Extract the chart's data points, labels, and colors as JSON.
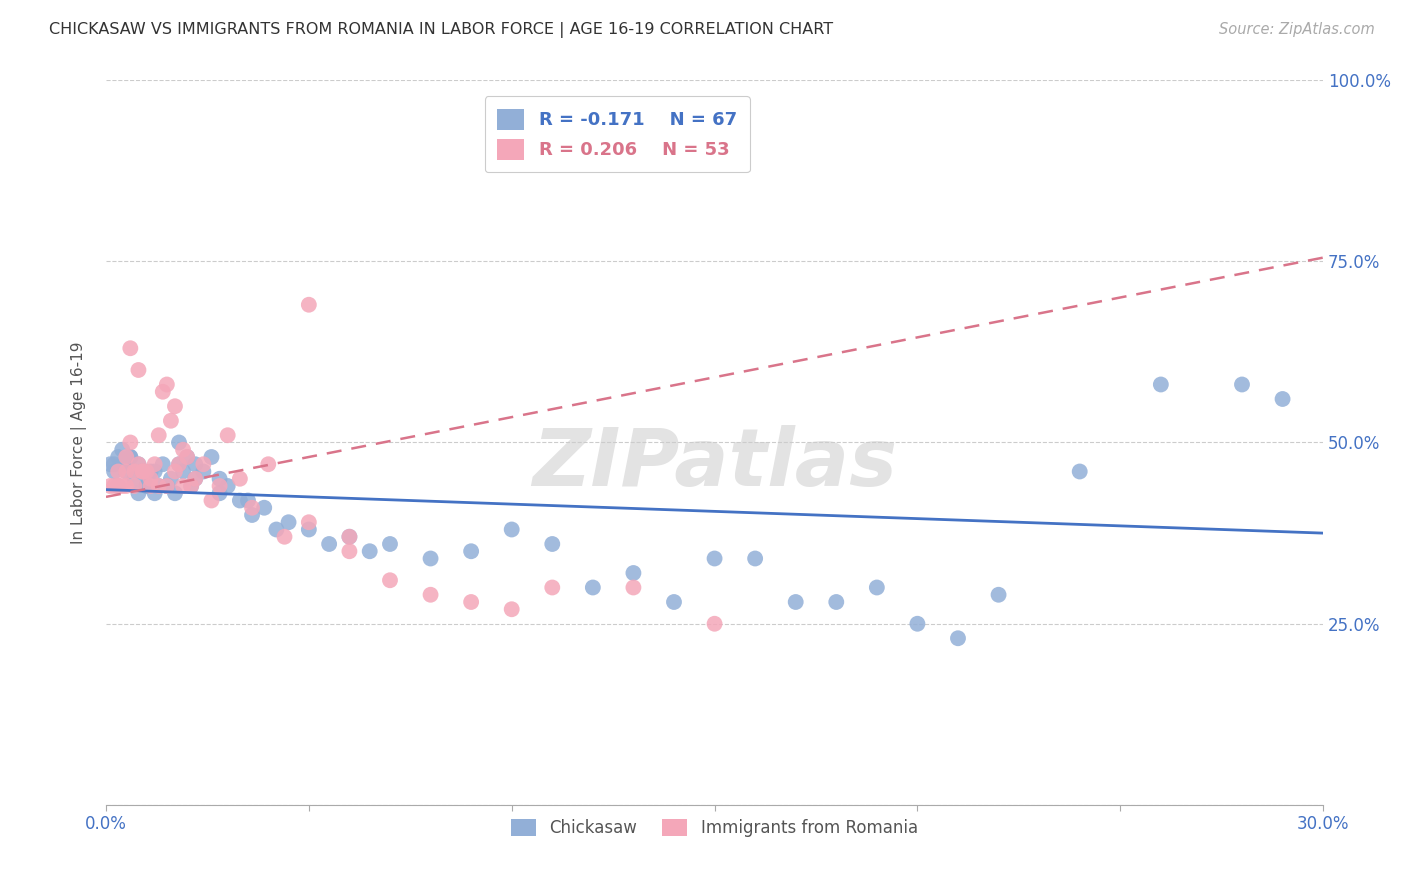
{
  "title": "CHICKASAW VS IMMIGRANTS FROM ROMANIA IN LABOR FORCE | AGE 16-19 CORRELATION CHART",
  "source": "Source: ZipAtlas.com",
  "ylabel": "In Labor Force | Age 16-19",
  "x_min": 0.0,
  "x_max": 0.3,
  "y_min": 0.0,
  "y_max": 1.0,
  "x_ticks": [
    0.0,
    0.05,
    0.1,
    0.15,
    0.2,
    0.25,
    0.3
  ],
  "y_ticks": [
    0.0,
    0.25,
    0.5,
    0.75,
    1.0
  ],
  "y_tick_labels": [
    "",
    "25.0%",
    "50.0%",
    "75.0%",
    "100.0%"
  ],
  "chickasaw_color": "#92afd7",
  "romania_color": "#f4a7b9",
  "chickasaw_line_color": "#4472c4",
  "romania_line_color": "#d9748a",
  "watermark": "ZIPatlas",
  "chick_line_x0": 0.0,
  "chick_line_y0": 0.435,
  "chick_line_x1": 0.3,
  "chick_line_y1": 0.375,
  "rom_line_x0": 0.0,
  "rom_line_y0": 0.425,
  "rom_line_x1": 0.3,
  "rom_line_y1": 0.755,
  "chickasaw_x": [
    0.001,
    0.002,
    0.003,
    0.003,
    0.004,
    0.005,
    0.006,
    0.007,
    0.008,
    0.009,
    0.01,
    0.011,
    0.012,
    0.013,
    0.014,
    0.015,
    0.016,
    0.017,
    0.018,
    0.019,
    0.02,
    0.021,
    0.022,
    0.024,
    0.026,
    0.028,
    0.03,
    0.033,
    0.036,
    0.039,
    0.042,
    0.045,
    0.05,
    0.055,
    0.06,
    0.065,
    0.07,
    0.08,
    0.09,
    0.1,
    0.11,
    0.12,
    0.13,
    0.14,
    0.15,
    0.16,
    0.17,
    0.18,
    0.19,
    0.2,
    0.21,
    0.22,
    0.24,
    0.26,
    0.28,
    0.29,
    0.002,
    0.004,
    0.006,
    0.008,
    0.01,
    0.012,
    0.015,
    0.018,
    0.022,
    0.028,
    0.035
  ],
  "chickasaw_y": [
    0.47,
    0.46,
    0.48,
    0.44,
    0.47,
    0.46,
    0.48,
    0.45,
    0.47,
    0.46,
    0.44,
    0.46,
    0.46,
    0.44,
    0.47,
    0.44,
    0.45,
    0.43,
    0.47,
    0.46,
    0.48,
    0.44,
    0.47,
    0.46,
    0.48,
    0.45,
    0.44,
    0.42,
    0.4,
    0.41,
    0.38,
    0.39,
    0.38,
    0.36,
    0.37,
    0.35,
    0.36,
    0.34,
    0.35,
    0.38,
    0.36,
    0.3,
    0.32,
    0.28,
    0.34,
    0.34,
    0.28,
    0.28,
    0.3,
    0.25,
    0.23,
    0.29,
    0.46,
    0.58,
    0.58,
    0.56,
    0.47,
    0.49,
    0.48,
    0.43,
    0.44,
    0.43,
    0.44,
    0.5,
    0.45,
    0.43,
    0.42
  ],
  "romania_x": [
    0.001,
    0.002,
    0.003,
    0.004,
    0.005,
    0.005,
    0.006,
    0.007,
    0.008,
    0.009,
    0.01,
    0.011,
    0.012,
    0.013,
    0.014,
    0.015,
    0.016,
    0.017,
    0.018,
    0.019,
    0.02,
    0.021,
    0.022,
    0.024,
    0.026,
    0.028,
    0.03,
    0.033,
    0.036,
    0.04,
    0.044,
    0.05,
    0.06,
    0.07,
    0.08,
    0.09,
    0.1,
    0.11,
    0.13,
    0.15,
    0.003,
    0.005,
    0.007,
    0.009,
    0.011,
    0.013,
    0.015,
    0.017,
    0.019,
    0.006,
    0.008,
    0.05,
    0.06
  ],
  "romania_y": [
    0.44,
    0.44,
    0.46,
    0.44,
    0.48,
    0.46,
    0.5,
    0.46,
    0.47,
    0.46,
    0.46,
    0.45,
    0.47,
    0.51,
    0.57,
    0.58,
    0.53,
    0.55,
    0.47,
    0.49,
    0.48,
    0.44,
    0.45,
    0.47,
    0.42,
    0.44,
    0.51,
    0.45,
    0.41,
    0.47,
    0.37,
    0.39,
    0.37,
    0.31,
    0.29,
    0.28,
    0.27,
    0.3,
    0.3,
    0.25,
    0.44,
    0.44,
    0.44,
    0.46,
    0.44,
    0.44,
    0.44,
    0.46,
    0.44,
    0.63,
    0.6,
    0.69,
    0.35
  ]
}
